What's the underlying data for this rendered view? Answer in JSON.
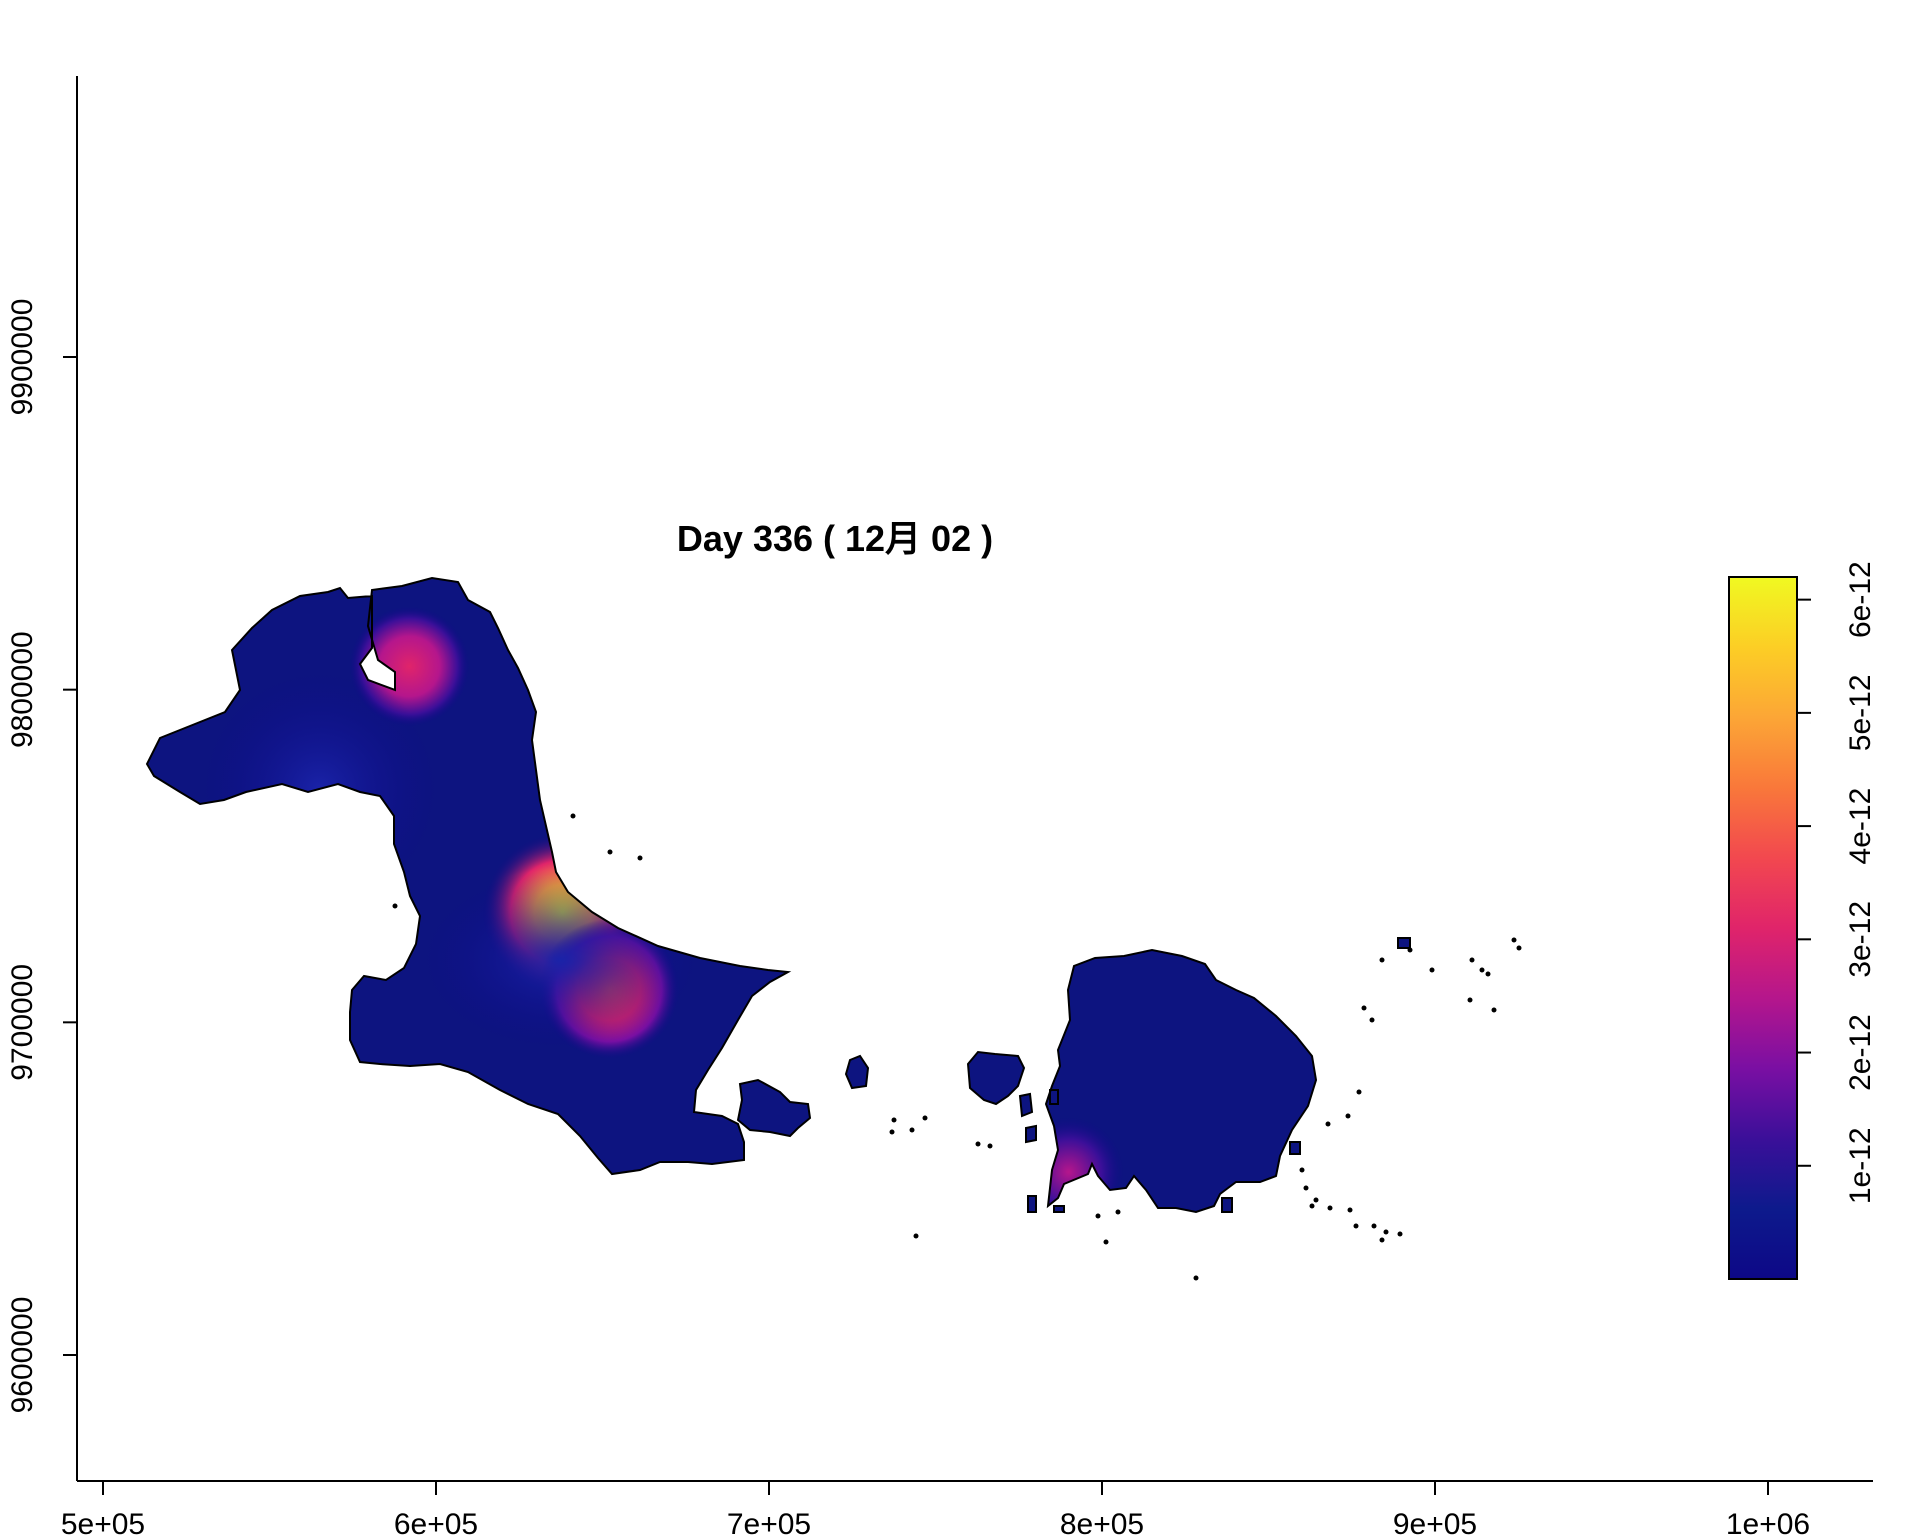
{
  "chart_data": {
    "type": "heatmap",
    "title": "Day 336 ( 12月 02 )",
    "xlabel": "",
    "ylabel": "",
    "xlim": [
      493000,
      1030000
    ],
    "ylim": [
      9562000,
      9985000
    ],
    "x_ticks": [
      500000,
      600000,
      700000,
      800000,
      900000,
      1000000
    ],
    "x_tick_labels": [
      "5e+05",
      "6e+05",
      "7e+05",
      "8e+05",
      "9e+05",
      "1e+06"
    ],
    "y_ticks": [
      9600000,
      9700000,
      9800000,
      9900000
    ],
    "y_tick_labels": [
      "9600000",
      "9700000",
      "9800000",
      "9900000"
    ],
    "legend": {
      "position": "right",
      "range": [
        0,
        6.2e-12
      ],
      "ticks": [
        1e-12,
        2e-12,
        3e-12,
        4e-12,
        5e-12,
        6e-12
      ],
      "tick_labels": [
        "1e-12",
        "2e-12",
        "3e-12",
        "4e-12",
        "5e-12",
        "6e-12"
      ],
      "colors": [
        "#0d0887",
        "#0d1a8c",
        "#3b0f99",
        "#7a0fa3",
        "#b5168c",
        "#e0246a",
        "#f2484f",
        "#f9783a",
        "#fca636",
        "#fcce25",
        "#f0f921"
      ]
    },
    "hotspots": [
      {
        "x": 638000,
        "y": 9733000,
        "value": 6e-12
      },
      {
        "x": 652000,
        "y": 9710000,
        "value": 3.6e-12
      },
      {
        "x": 592000,
        "y": 9807000,
        "value": 3e-12
      },
      {
        "x": 790000,
        "y": 9655000,
        "value": 2e-12
      },
      {
        "x": 565000,
        "y": 9770000,
        "value": 8e-13
      }
    ]
  }
}
